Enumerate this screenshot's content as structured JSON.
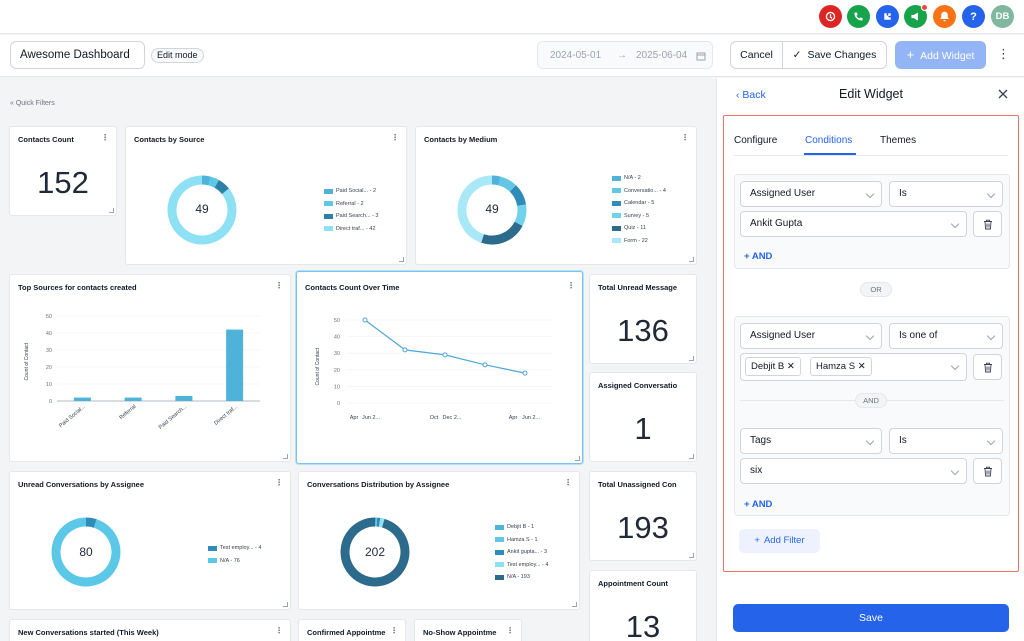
{
  "topbar": {
    "icons": [
      {
        "name": "ai-icon",
        "color": "#dc2626"
      },
      {
        "name": "phone-icon",
        "color": "#16a34a"
      },
      {
        "name": "integrations-icon",
        "color": "#2563eb"
      },
      {
        "name": "megaphone-icon",
        "color": "#16a34a"
      },
      {
        "name": "bell-icon",
        "color": "#f97316"
      },
      {
        "name": "help-icon",
        "color": "#2563eb"
      }
    ],
    "avatar_initials": "DB",
    "avatar_color": "#7fb89e"
  },
  "header": {
    "dashboard_name": "Awesome Dashboard",
    "edit_mode_label": "Edit mode",
    "date_start": "2024-05-01",
    "date_end": "2025-06-04",
    "cancel_label": "Cancel",
    "save_changes_label": "Save Changes",
    "add_widget_label": "Add Widget"
  },
  "canvas": {
    "quick_filters_label": "Quick Filters",
    "widgets": {
      "contacts_count": {
        "title": "Contacts Count",
        "value": "152"
      },
      "contacts_by_source": {
        "title": "Contacts by Source",
        "center": "49",
        "legend": [
          "Paid Social... - 2",
          "Referral - 2",
          "Paid Search... - 3",
          "Direct traf... - 42"
        ]
      },
      "contacts_by_medium": {
        "title": "Contacts by Medium",
        "center": "49",
        "legend": [
          "N/A - 2",
          "Conversatio... - 4",
          "Calendar - 5",
          "Survey - 5",
          "Quiz - 11",
          "Form - 22"
        ]
      },
      "top_sources": {
        "title": "Top Sources for contacts created"
      },
      "contacts_over_time": {
        "title": "Contacts Count Over Time"
      },
      "total_unread": {
        "title": "Total Unread Message",
        "value": "136"
      },
      "assigned_conversations": {
        "title": "Assigned Conversatio",
        "value": "1"
      },
      "unread_by_assignee": {
        "title": "Unread Conversations by Assignee",
        "center": "80",
        "legend": [
          "Test employ... - 4",
          "N/A - 76"
        ]
      },
      "conv_distribution": {
        "title": "Conversations Distribution by Assignee",
        "center": "202",
        "legend": [
          "Debjit B - 1",
          "Hamza S - 1",
          "Ankit gupta... - 3",
          "Test employ... - 4",
          "N/A - 193"
        ]
      },
      "total_unassigned": {
        "title": "Total Unassigned Con",
        "value": "193"
      },
      "appointment_count": {
        "title": "Appointment Count",
        "value": "13"
      },
      "new_conversations": {
        "title": "New Conversations started (This Week)"
      },
      "confirmed_appointments": {
        "title": "Confirmed Appointme"
      },
      "no_show_appointments": {
        "title": "No-Show Appointme"
      }
    }
  },
  "chart_data": [
    {
      "type": "bar",
      "title": "Top Sources for contacts created",
      "ylabel": "Count of Contact",
      "categories": [
        "Paid Social...",
        "Referral",
        "Paid Search...",
        "Direct traf..."
      ],
      "values": [
        2,
        2,
        3,
        42
      ],
      "ylim": [
        0,
        50
      ],
      "yticks": [
        0,
        10,
        20,
        30,
        40,
        50
      ],
      "color": "#4fb3d9"
    },
    {
      "type": "line",
      "title": "Contacts Count Over Time",
      "ylabel": "Count of Contact",
      "x": [
        "Apr Jun 2...",
        "",
        "Oct Dec 2...",
        "",
        "Apr Jun 2..."
      ],
      "xtick_labels": [
        "Apr",
        "Jun 2...",
        "Oct",
        "Dec 2...",
        "Apr",
        "Jun 2..."
      ],
      "values": [
        50,
        32,
        29,
        23,
        18
      ],
      "ylim": [
        0,
        50
      ],
      "yticks": [
        0,
        10,
        20,
        30,
        40,
        50
      ],
      "color": "#4fa8d8"
    },
    {
      "type": "pie",
      "title": "Contacts by Source",
      "labels": [
        "Paid Social...",
        "Referral",
        "Paid Search...",
        "Direct traf..."
      ],
      "values": [
        2,
        2,
        3,
        42
      ],
      "colors": [
        "#4fb3d9",
        "#5ac8e6",
        "#2e7fa8",
        "#8ee0f5"
      ]
    },
    {
      "type": "pie",
      "title": "Contacts by Medium",
      "labels": [
        "N/A",
        "Conversatio...",
        "Calendar",
        "Survey",
        "Quiz",
        "Form"
      ],
      "values": [
        2,
        4,
        5,
        5,
        11,
        22
      ],
      "colors": [
        "#4fb3d9",
        "#62c6e4",
        "#2f8cb8",
        "#6fd3ee",
        "#2c6b8c",
        "#a8e8f7"
      ]
    },
    {
      "type": "pie",
      "title": "Unread Conversations by Assignee",
      "labels": [
        "Test employ...",
        "N/A"
      ],
      "values": [
        4,
        76
      ],
      "colors": [
        "#2f8cb8",
        "#5ac8e6"
      ]
    },
    {
      "type": "pie",
      "title": "Conversations Distribution by Assignee",
      "labels": [
        "Debjit B",
        "Hamza S",
        "Ankit gupta...",
        "Test employ...",
        "N/A"
      ],
      "values": [
        1,
        1,
        3,
        4,
        193
      ],
      "colors": [
        "#4fb3d9",
        "#62c6e4",
        "#2f8cb8",
        "#8ee0f5",
        "#2c6b8c"
      ]
    }
  ],
  "panel": {
    "back_label": "Back",
    "title": "Edit Widget",
    "tabs": [
      "Configure",
      "Conditions",
      "Themes"
    ],
    "active_tab": "Conditions",
    "group1": {
      "field": "Assigned User",
      "operator": "Is",
      "value": "Ankit Gupta",
      "add_and": "+ AND"
    },
    "or_label": "OR",
    "group2": {
      "field1": "Assigned User",
      "operator1": "Is one of",
      "chips": [
        "Debjit B",
        "Hamza S"
      ],
      "and_label": "AND",
      "field2": "Tags",
      "operator2": "Is",
      "value2": "six",
      "add_and": "+ AND"
    },
    "add_filter_label": "Add Filter",
    "save_label": "Save"
  }
}
